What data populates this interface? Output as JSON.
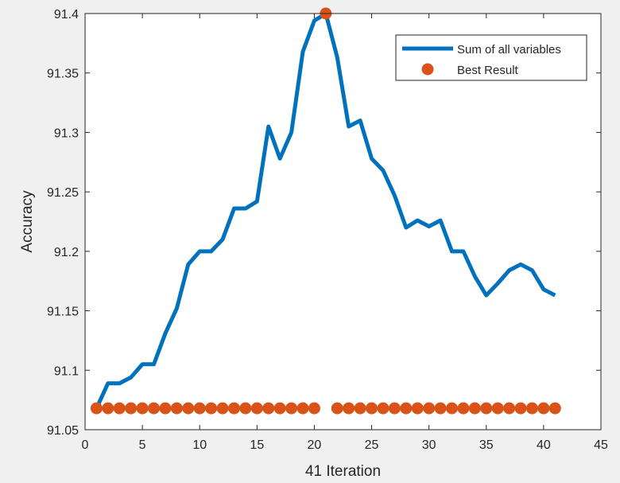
{
  "chart_data": {
    "type": "line",
    "xlabel": "41 Iteration",
    "ylabel": "Accuracy",
    "xlim": [
      0,
      45
    ],
    "ylim": [
      91.05,
      91.4
    ],
    "xticks": [
      0,
      5,
      10,
      15,
      20,
      25,
      30,
      35,
      40,
      45
    ],
    "xtick_labels": [
      "0",
      "5",
      "10",
      "15",
      "20",
      "25",
      "30",
      "35",
      "40",
      "45"
    ],
    "yticks": [
      91.05,
      91.1,
      91.15,
      91.2,
      91.25,
      91.3,
      91.35,
      91.4
    ],
    "ytick_labels": [
      "91.05",
      "91.1",
      "91.15",
      "91.2",
      "91.25",
      "91.3",
      "91.35",
      "91.4"
    ],
    "grid": false,
    "legend_position": "top-right",
    "series": [
      {
        "name": "Sum of all variables",
        "kind": "line",
        "color": "#0072bd",
        "x": [
          1,
          2,
          3,
          4,
          5,
          6,
          7,
          8,
          9,
          10,
          11,
          12,
          13,
          14,
          15,
          16,
          17,
          18,
          19,
          20,
          21,
          22,
          23,
          24,
          25,
          26,
          27,
          28,
          29,
          30,
          31,
          32,
          33,
          34,
          35,
          36,
          37,
          38,
          39,
          40,
          41
        ],
        "y": [
          91.068,
          91.089,
          91.089,
          91.094,
          91.105,
          91.105,
          91.131,
          91.152,
          91.189,
          91.2,
          91.2,
          91.21,
          91.236,
          91.236,
          91.242,
          91.305,
          91.278,
          91.3,
          91.368,
          91.394,
          91.4,
          91.363,
          91.305,
          91.31,
          91.278,
          91.268,
          91.247,
          91.22,
          91.226,
          91.221,
          91.226,
          91.2,
          91.2,
          91.179,
          91.163,
          91.173,
          91.184,
          91.189,
          91.184,
          91.168,
          91.163
        ]
      },
      {
        "name": "Best Result",
        "kind": "scatter",
        "color": "#d95319",
        "x": [
          1,
          2,
          3,
          4,
          5,
          6,
          7,
          8,
          9,
          10,
          11,
          12,
          13,
          14,
          15,
          16,
          17,
          18,
          19,
          20,
          21,
          22,
          23,
          24,
          25,
          26,
          27,
          28,
          29,
          30,
          31,
          32,
          33,
          34,
          35,
          36,
          37,
          38,
          39,
          40,
          41
        ],
        "y": [
          91.068,
          91.068,
          91.068,
          91.068,
          91.068,
          91.068,
          91.068,
          91.068,
          91.068,
          91.068,
          91.068,
          91.068,
          91.068,
          91.068,
          91.068,
          91.068,
          91.068,
          91.068,
          91.068,
          91.068,
          91.4,
          91.068,
          91.068,
          91.068,
          91.068,
          91.068,
          91.068,
          91.068,
          91.068,
          91.068,
          91.068,
          91.068,
          91.068,
          91.068,
          91.068,
          91.068,
          91.068,
          91.068,
          91.068,
          91.068,
          91.068
        ]
      }
    ]
  }
}
